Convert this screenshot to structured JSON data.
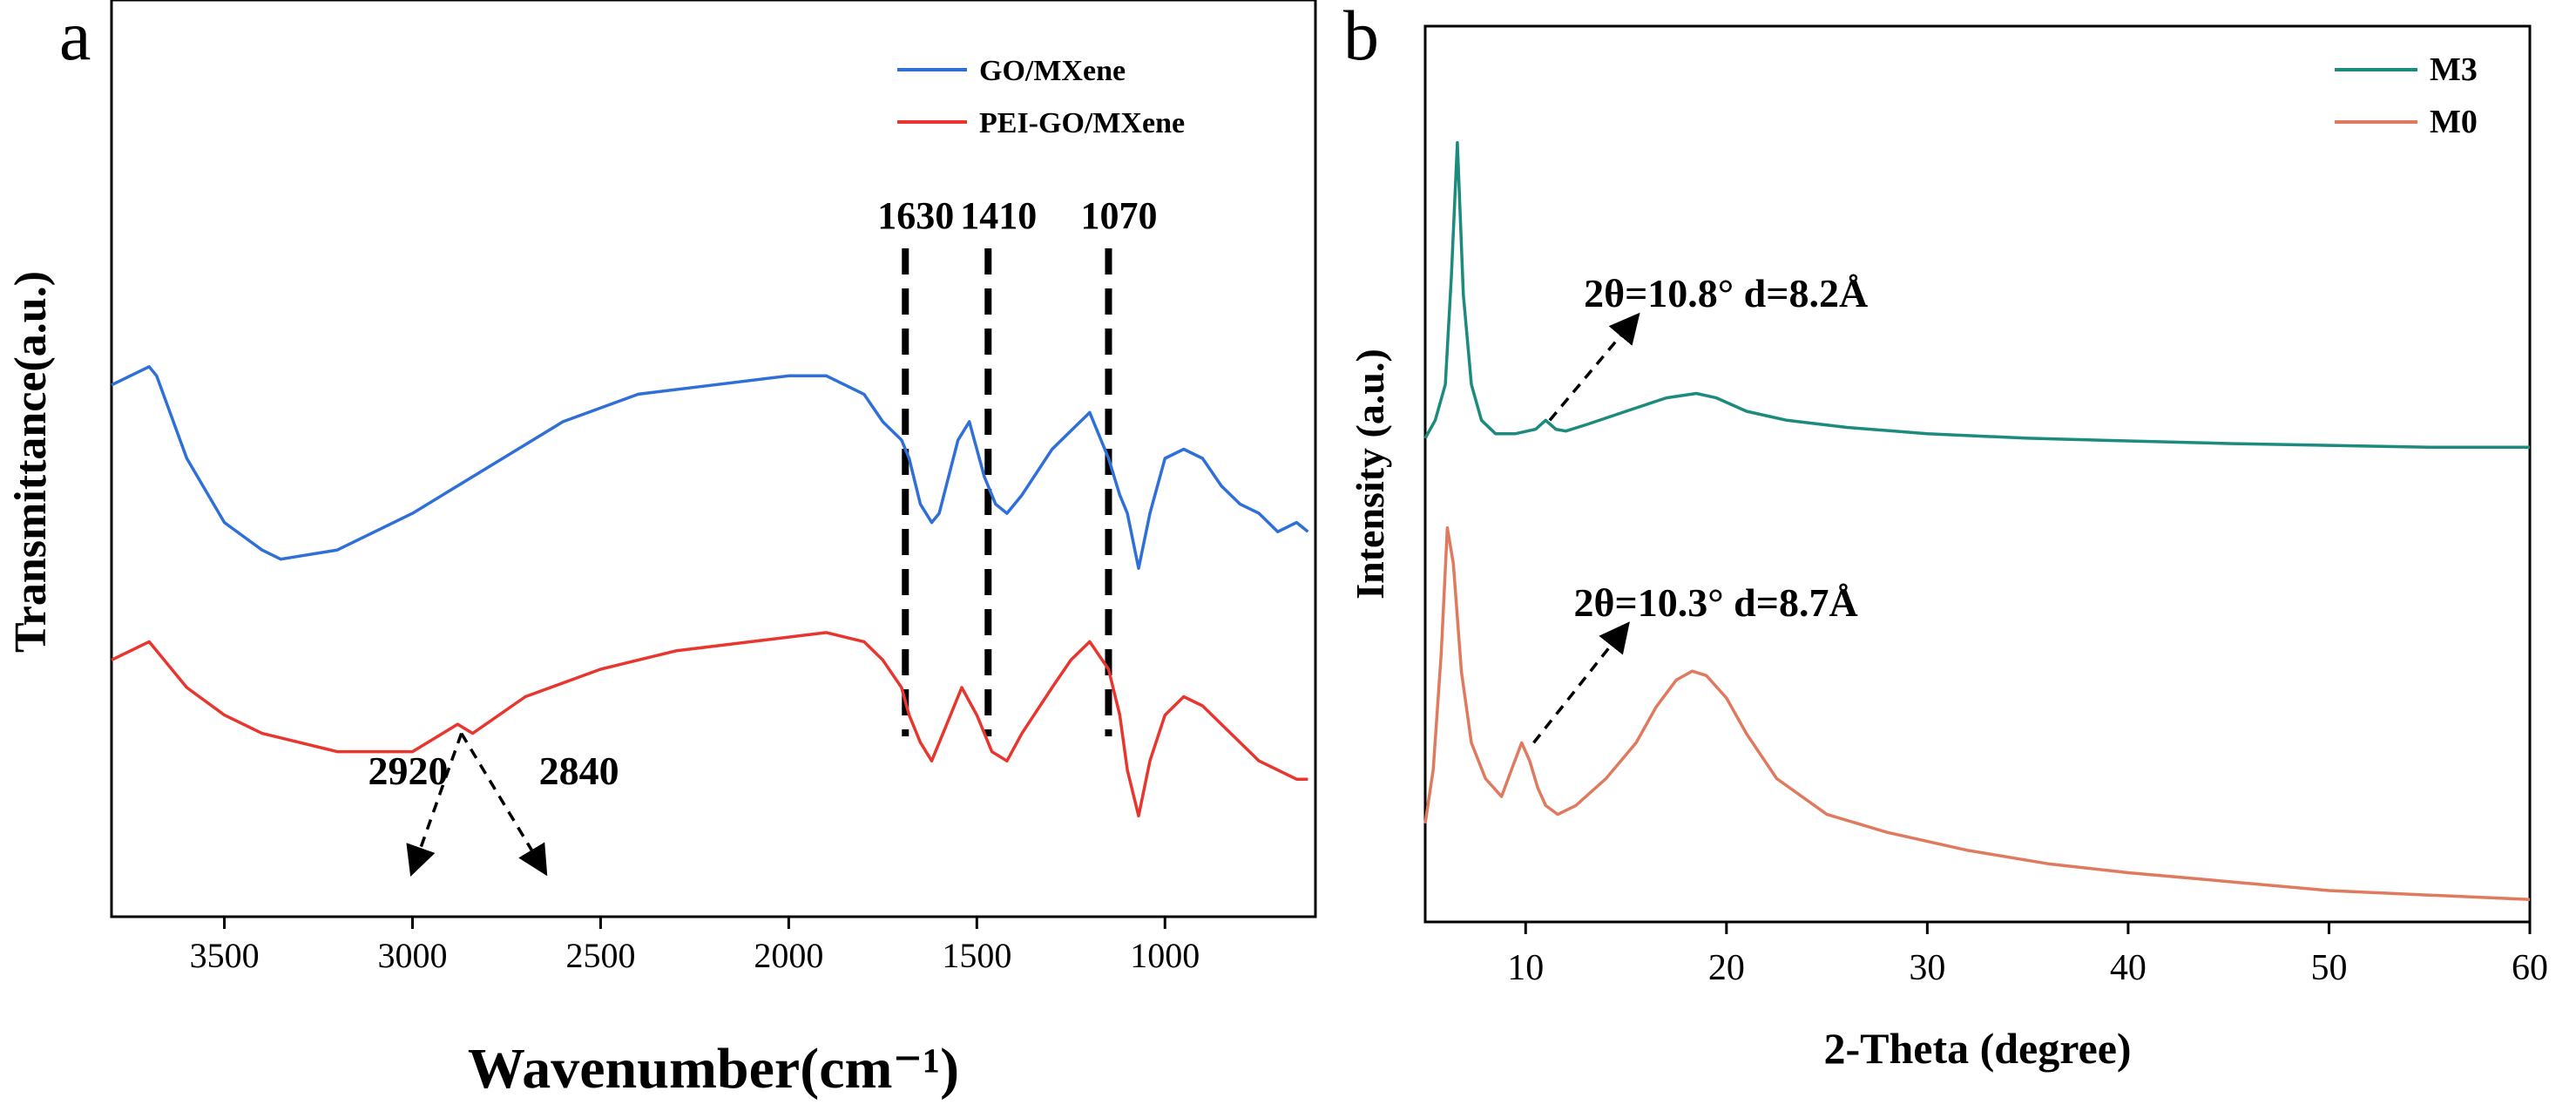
{
  "chart_data": [
    {
      "panel_label": "a",
      "type": "line",
      "title": "",
      "xlabel": "Wavenumber(cm⁻¹)",
      "ylabel": "Transmittance(a.u.)",
      "x_reversed": true,
      "xlim": [
        3800,
        600
      ],
      "ylim": [
        0,
        1
      ],
      "xticks": [
        3500,
        3000,
        2500,
        2000,
        1500,
        1000
      ],
      "grid": false,
      "legend_position": "top-right",
      "series": [
        {
          "name": "GO/MXene",
          "color": "#2E6FD8",
          "x": [
            3800,
            3700,
            3680,
            3600,
            3500,
            3400,
            3350,
            3200,
            3000,
            2800,
            2600,
            2400,
            2200,
            2000,
            1900,
            1800,
            1750,
            1700,
            1680,
            1650,
            1620,
            1600,
            1550,
            1520,
            1480,
            1450,
            1420,
            1380,
            1300,
            1250,
            1200,
            1150,
            1120,
            1100,
            1070,
            1040,
            1000,
            950,
            900,
            850,
            800,
            750,
            700,
            650,
            620
          ],
          "y": [
            0.58,
            0.6,
            0.59,
            0.5,
            0.43,
            0.4,
            0.39,
            0.4,
            0.44,
            0.49,
            0.54,
            0.57,
            0.58,
            0.59,
            0.59,
            0.57,
            0.54,
            0.52,
            0.5,
            0.45,
            0.43,
            0.44,
            0.52,
            0.54,
            0.48,
            0.45,
            0.44,
            0.46,
            0.51,
            0.53,
            0.55,
            0.5,
            0.46,
            0.44,
            0.38,
            0.44,
            0.5,
            0.51,
            0.5,
            0.47,
            0.45,
            0.44,
            0.42,
            0.43,
            0.42
          ]
        },
        {
          "name": "PEI-GO/MXene",
          "color": "#E8362F",
          "x": [
            3800,
            3700,
            3680,
            3600,
            3500,
            3400,
            3200,
            3000,
            2920,
            2880,
            2840,
            2700,
            2500,
            2300,
            2100,
            1900,
            1800,
            1750,
            1700,
            1680,
            1650,
            1620,
            1580,
            1540,
            1500,
            1460,
            1420,
            1380,
            1300,
            1250,
            1200,
            1150,
            1120,
            1100,
            1070,
            1040,
            1000,
            950,
            900,
            850,
            800,
            750,
            700,
            650,
            620
          ],
          "y": [
            0.28,
            0.3,
            0.29,
            0.25,
            0.22,
            0.2,
            0.18,
            0.18,
            0.2,
            0.21,
            0.2,
            0.24,
            0.27,
            0.29,
            0.3,
            0.31,
            0.3,
            0.28,
            0.25,
            0.22,
            0.19,
            0.17,
            0.21,
            0.25,
            0.22,
            0.18,
            0.17,
            0.2,
            0.25,
            0.28,
            0.3,
            0.27,
            0.22,
            0.16,
            0.11,
            0.17,
            0.22,
            0.24,
            0.23,
            0.21,
            0.19,
            0.17,
            0.16,
            0.15,
            0.15
          ]
        }
      ],
      "reference_lines": [
        {
          "x": 1690,
          "label": "1630"
        },
        {
          "x": 1470,
          "label": "1410"
        },
        {
          "x": 1150,
          "label": "1070"
        }
      ],
      "annotations": [
        {
          "label": "2920",
          "from_x": 2870,
          "from_y": 0.2,
          "to_x": 3000,
          "to_y": 0.05
        },
        {
          "label": "2840",
          "from_x": 2870,
          "from_y": 0.2,
          "to_x": 2650,
          "to_y": 0.05
        }
      ]
    },
    {
      "panel_label": "b",
      "type": "line",
      "title": "",
      "xlabel": "2-Theta (degree)",
      "ylabel": "Intensity (a.u.)",
      "xlim": [
        5,
        60
      ],
      "ylim": [
        0,
        1
      ],
      "xticks": [
        10,
        20,
        30,
        40,
        50,
        60
      ],
      "grid": false,
      "legend_position": "top-right",
      "series": [
        {
          "name": "M3",
          "color": "#1C8A7C",
          "x": [
            5,
            5.5,
            6,
            6.3,
            6.6,
            6.9,
            7.3,
            7.8,
            8.5,
            9.5,
            10.5,
            11,
            11.5,
            12,
            13,
            15,
            17,
            18.5,
            19.5,
            21,
            23,
            26,
            30,
            35,
            40,
            45,
            50,
            55,
            60
          ],
          "y": [
            0.54,
            0.56,
            0.6,
            0.72,
            0.87,
            0.7,
            0.6,
            0.56,
            0.545,
            0.545,
            0.55,
            0.56,
            0.55,
            0.548,
            0.555,
            0.57,
            0.585,
            0.59,
            0.585,
            0.57,
            0.56,
            0.552,
            0.545,
            0.54,
            0.537,
            0.534,
            0.532,
            0.53,
            0.53
          ]
        },
        {
          "name": "M0",
          "color": "#E07A5F",
          "x": [
            5,
            5.4,
            5.8,
            6.1,
            6.4,
            6.8,
            7.3,
            8,
            8.8,
            9.3,
            9.8,
            10.2,
            10.6,
            11,
            11.6,
            12.5,
            14,
            15.5,
            16.5,
            17.5,
            18.3,
            19,
            20,
            21,
            22.5,
            25,
            28,
            32,
            36,
            40,
            45,
            50,
            55,
            60
          ],
          "y": [
            0.11,
            0.17,
            0.3,
            0.44,
            0.4,
            0.28,
            0.2,
            0.16,
            0.14,
            0.17,
            0.2,
            0.18,
            0.15,
            0.13,
            0.12,
            0.13,
            0.16,
            0.2,
            0.24,
            0.27,
            0.28,
            0.275,
            0.25,
            0.21,
            0.16,
            0.12,
            0.1,
            0.08,
            0.065,
            0.055,
            0.045,
            0.035,
            0.03,
            0.025
          ]
        }
      ],
      "annotations": [
        {
          "label": "2θ=10.8° d=8.2Å",
          "from_x": 11.2,
          "from_y": 0.56,
          "to_x": 15.5,
          "to_y": 0.675
        },
        {
          "label": "2θ=10.3° d=8.7Å",
          "from_x": 10.4,
          "from_y": 0.2,
          "to_x": 15,
          "to_y": 0.33
        }
      ]
    }
  ]
}
